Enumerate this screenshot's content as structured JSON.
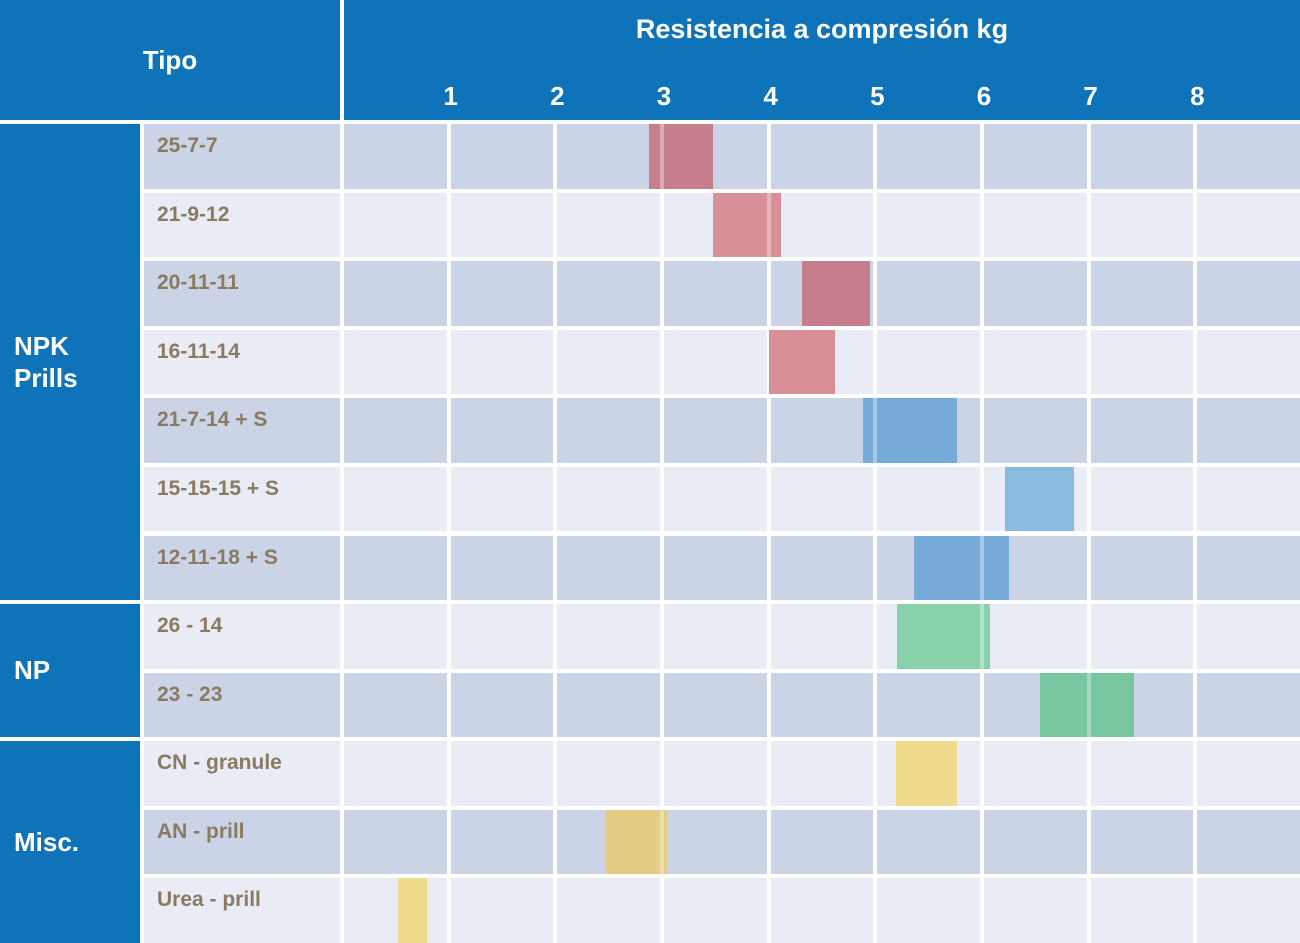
{
  "header": {
    "tipo_label": "Tipo",
    "scale_title": "Resistencia a compresión kg"
  },
  "colors": {
    "header_blue": "#0e73b9",
    "header_text": "#ffffff",
    "row_dark": "#cbd4e6",
    "row_light": "#e9ecf4",
    "gridline_white": "#ffffff",
    "row_label_text": "#8a7a62"
  },
  "chart_data": {
    "type": "bar",
    "orientation": "horizontal-range",
    "title": "Resistencia a compresión kg",
    "xlabel": "Resistencia a compresión kg",
    "unit": "kg",
    "x_ticks": [
      1,
      2,
      3,
      4,
      5,
      6,
      7,
      8
    ],
    "xlim": [
      0,
      9
    ],
    "grid": true,
    "groups": [
      {
        "name": "NPK Prills",
        "rows": [
          {
            "label": "25-7-7",
            "range_kg": [
              2.9,
              3.5
            ],
            "color": "#c77e8c",
            "color_family": "red"
          },
          {
            "label": "21-9-12",
            "range_kg": [
              3.5,
              4.13
            ],
            "color": "#d98f97",
            "color_family": "red"
          },
          {
            "label": "20-11-11",
            "range_kg": [
              4.33,
              4.97
            ],
            "color": "#c77e8c",
            "color_family": "red"
          },
          {
            "label": "16-11-14",
            "range_kg": [
              4.02,
              4.64
            ],
            "color": "#d98f97",
            "color_family": "red"
          },
          {
            "label": "21-7-14 + S",
            "range_kg": [
              4.9,
              5.78
            ],
            "color": "#76aad9",
            "color_family": "blue"
          },
          {
            "label": "15-15-15 + S",
            "range_kg": [
              6.23,
              6.88
            ],
            "color": "#8abade",
            "color_family": "blue"
          },
          {
            "label": "12-11-18 + S",
            "range_kg": [
              5.38,
              6.27
            ],
            "color": "#76aad9",
            "color_family": "blue"
          }
        ]
      },
      {
        "name": "NP",
        "rows": [
          {
            "label": "26 - 14",
            "range_kg": [
              5.22,
              6.09
            ],
            "color": "#89d1ab",
            "color_family": "green"
          },
          {
            "label": "23 - 23",
            "range_kg": [
              6.56,
              7.44
            ],
            "color": "#77c6a0",
            "color_family": "green"
          }
        ]
      },
      {
        "name": "Misc.",
        "rows": [
          {
            "label": "CN - granule",
            "range_kg": [
              5.21,
              5.78
            ],
            "color": "#f0da8c",
            "color_family": "yellow"
          },
          {
            "label": "AN - prill",
            "range_kg": [
              2.49,
              3.07
            ],
            "color": "#e3cc83",
            "color_family": "yellow"
          },
          {
            "label": "Urea - prill",
            "range_kg": [
              0.54,
              0.82
            ],
            "color": "#f0da8c",
            "color_family": "yellow"
          }
        ]
      }
    ]
  }
}
